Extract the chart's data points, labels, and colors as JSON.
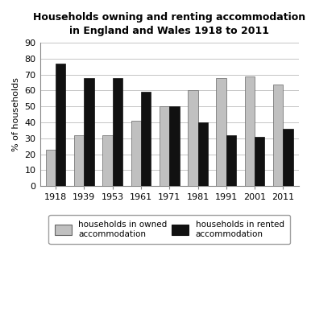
{
  "title_line1": "Households owning and renting accommodation",
  "title_line2": "in England and Wales 1918 to 2011",
  "years": [
    "1918",
    "1939",
    "1953",
    "1961",
    "1971",
    "1981",
    "1991",
    "2001",
    "2011"
  ],
  "owned": [
    23,
    32,
    32,
    41,
    50,
    60,
    68,
    69,
    64
  ],
  "rented": [
    77,
    68,
    68,
    59,
    50,
    40,
    32,
    31,
    36
  ],
  "owned_color": "#c0c0c0",
  "rented_color": "#111111",
  "ylabel": "% of households",
  "ylim": [
    0,
    90
  ],
  "yticks": [
    0,
    10,
    20,
    30,
    40,
    50,
    60,
    70,
    80,
    90
  ],
  "legend_owned": "households in owned\naccommodation",
  "legend_rented": "households in rented\naccommodation",
  "bar_width": 0.35,
  "background_color": "#ffffff",
  "grid_color": "#bbbbbb",
  "title_fontsize": 9,
  "axis_fontsize": 8,
  "legend_fontsize": 7.5
}
